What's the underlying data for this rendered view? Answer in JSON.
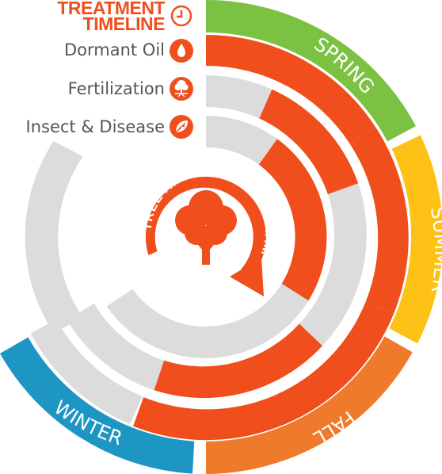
{
  "legend": {
    "title_line1": "TREATMENT",
    "title_line2": "TIMELINE",
    "title_icon": "clock-icon",
    "items": [
      {
        "label": "Dormant Oil",
        "icon": "droplet-icon"
      },
      {
        "label": "Fertilization",
        "icon": "tree-roots-icon"
      },
      {
        "label": "Insect & Disease",
        "icon": "leaf-bug-icon"
      }
    ]
  },
  "center": {
    "label": "TREE AND SHRUB PROGRAM",
    "icon": "tree-icon"
  },
  "seasons": [
    {
      "name": "SPRING",
      "color": "#7cc242"
    },
    {
      "name": "SUMMER",
      "color": "#fdc215"
    },
    {
      "name": "FALL",
      "color": "#f07a2b"
    },
    {
      "name": "WINTER",
      "color": "#1d96c3"
    }
  ],
  "colors": {
    "treatment": "#f04e1c",
    "inactive": "#dcdcdc",
    "legend_title": "#f04e1c",
    "legend_text": "#555555"
  }
}
